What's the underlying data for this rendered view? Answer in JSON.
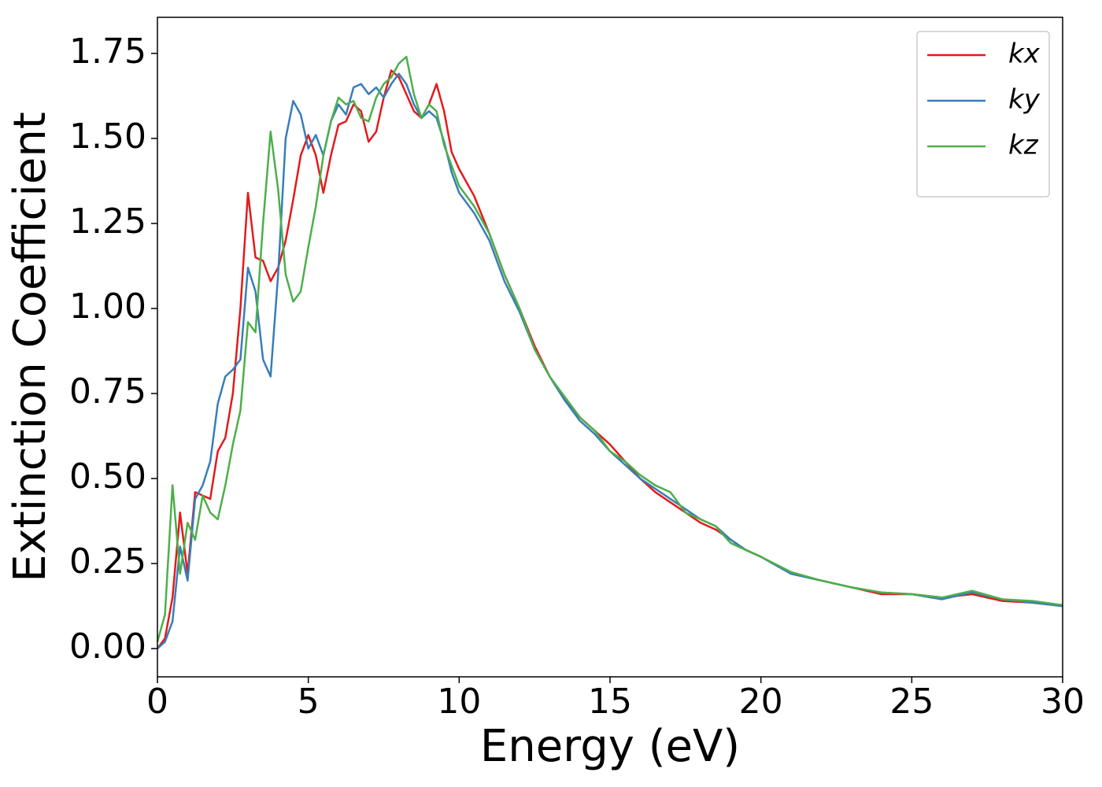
{
  "chart_data": {
    "type": "line",
    "x_label": "Energy (eV)",
    "y_label": "Extinction Coefficient",
    "x": [
      0,
      0.25,
      0.5,
      0.75,
      1,
      1.25,
      1.5,
      1.75,
      2,
      2.25,
      2.5,
      2.75,
      3,
      3.25,
      3.5,
      3.75,
      4,
      4.25,
      4.5,
      4.75,
      5,
      5.25,
      5.5,
      5.75,
      6,
      6.25,
      6.5,
      6.75,
      7,
      7.25,
      7.5,
      7.75,
      8,
      8.25,
      8.5,
      8.75,
      9,
      9.25,
      9.5,
      9.75,
      10,
      10.5,
      11,
      11.5,
      12,
      12.5,
      13,
      13.5,
      14,
      14.5,
      15,
      15.5,
      16,
      16.5,
      17,
      17.5,
      18,
      18.5,
      19,
      19.5,
      20,
      21,
      22,
      23,
      24,
      25,
      26,
      27,
      28,
      29,
      30
    ],
    "series": [
      {
        "name": "kx",
        "color": "#e41a1c",
        "values": [
          0,
          0.03,
          0.15,
          0.4,
          0.22,
          0.46,
          0.45,
          0.44,
          0.58,
          0.62,
          0.75,
          1.0,
          1.34,
          1.15,
          1.14,
          1.08,
          1.12,
          1.2,
          1.32,
          1.45,
          1.51,
          1.45,
          1.34,
          1.45,
          1.54,
          1.55,
          1.6,
          1.58,
          1.49,
          1.52,
          1.62,
          1.7,
          1.68,
          1.63,
          1.58,
          1.56,
          1.6,
          1.66,
          1.58,
          1.46,
          1.41,
          1.33,
          1.22,
          1.1,
          1.0,
          0.89,
          0.8,
          0.73,
          0.68,
          0.64,
          0.6,
          0.55,
          0.5,
          0.46,
          0.43,
          0.4,
          0.37,
          0.35,
          0.32,
          0.29,
          0.27,
          0.22,
          0.2,
          0.18,
          0.16,
          0.16,
          0.15,
          0.16,
          0.14,
          0.135,
          0.125
        ]
      },
      {
        "name": "ky",
        "color": "#377eb8",
        "values": [
          0,
          0.02,
          0.08,
          0.3,
          0.2,
          0.44,
          0.48,
          0.55,
          0.72,
          0.8,
          0.82,
          0.85,
          1.12,
          1.05,
          0.85,
          0.8,
          1.1,
          1.5,
          1.61,
          1.57,
          1.47,
          1.51,
          1.45,
          1.55,
          1.6,
          1.57,
          1.65,
          1.66,
          1.63,
          1.65,
          1.62,
          1.66,
          1.69,
          1.66,
          1.6,
          1.56,
          1.58,
          1.56,
          1.49,
          1.4,
          1.34,
          1.28,
          1.2,
          1.08,
          0.99,
          0.88,
          0.8,
          0.73,
          0.67,
          0.63,
          0.58,
          0.54,
          0.5,
          0.47,
          0.44,
          0.41,
          0.38,
          0.36,
          0.32,
          0.29,
          0.27,
          0.22,
          0.2,
          0.18,
          0.165,
          0.16,
          0.145,
          0.165,
          0.145,
          0.135,
          0.125
        ]
      },
      {
        "name": "kz",
        "color": "#4daf4a",
        "values": [
          0.02,
          0.1,
          0.48,
          0.22,
          0.37,
          0.32,
          0.45,
          0.4,
          0.38,
          0.48,
          0.6,
          0.7,
          0.96,
          0.93,
          1.25,
          1.52,
          1.35,
          1.1,
          1.02,
          1.05,
          1.18,
          1.3,
          1.45,
          1.55,
          1.62,
          1.6,
          1.61,
          1.56,
          1.55,
          1.62,
          1.66,
          1.68,
          1.72,
          1.74,
          1.63,
          1.56,
          1.6,
          1.58,
          1.48,
          1.42,
          1.36,
          1.3,
          1.22,
          1.1,
          1.0,
          0.88,
          0.8,
          0.74,
          0.68,
          0.64,
          0.58,
          0.55,
          0.51,
          0.48,
          0.46,
          0.4,
          0.38,
          0.36,
          0.31,
          0.29,
          0.27,
          0.225,
          0.2,
          0.18,
          0.165,
          0.16,
          0.15,
          0.17,
          0.145,
          0.14,
          0.128
        ]
      }
    ],
    "xlim": [
      0,
      30
    ],
    "xticks": [
      0,
      5,
      10,
      15,
      20,
      25,
      30
    ],
    "ylim": [
      -0.083,
      1.856
    ],
    "yticks": [
      {
        "value": 0,
        "label": "0.00"
      },
      {
        "value": 0.25,
        "label": "0.25"
      },
      {
        "value": 0.5,
        "label": "0.50"
      },
      {
        "value": 0.75,
        "label": "0.75"
      },
      {
        "value": 1,
        "label": "1.00"
      },
      {
        "value": 1.25,
        "label": "1.25"
      },
      {
        "value": 1.5,
        "label": "1.50"
      },
      {
        "value": 1.75,
        "label": "1.75"
      }
    ],
    "grid": false,
    "legend": "upper right"
  }
}
